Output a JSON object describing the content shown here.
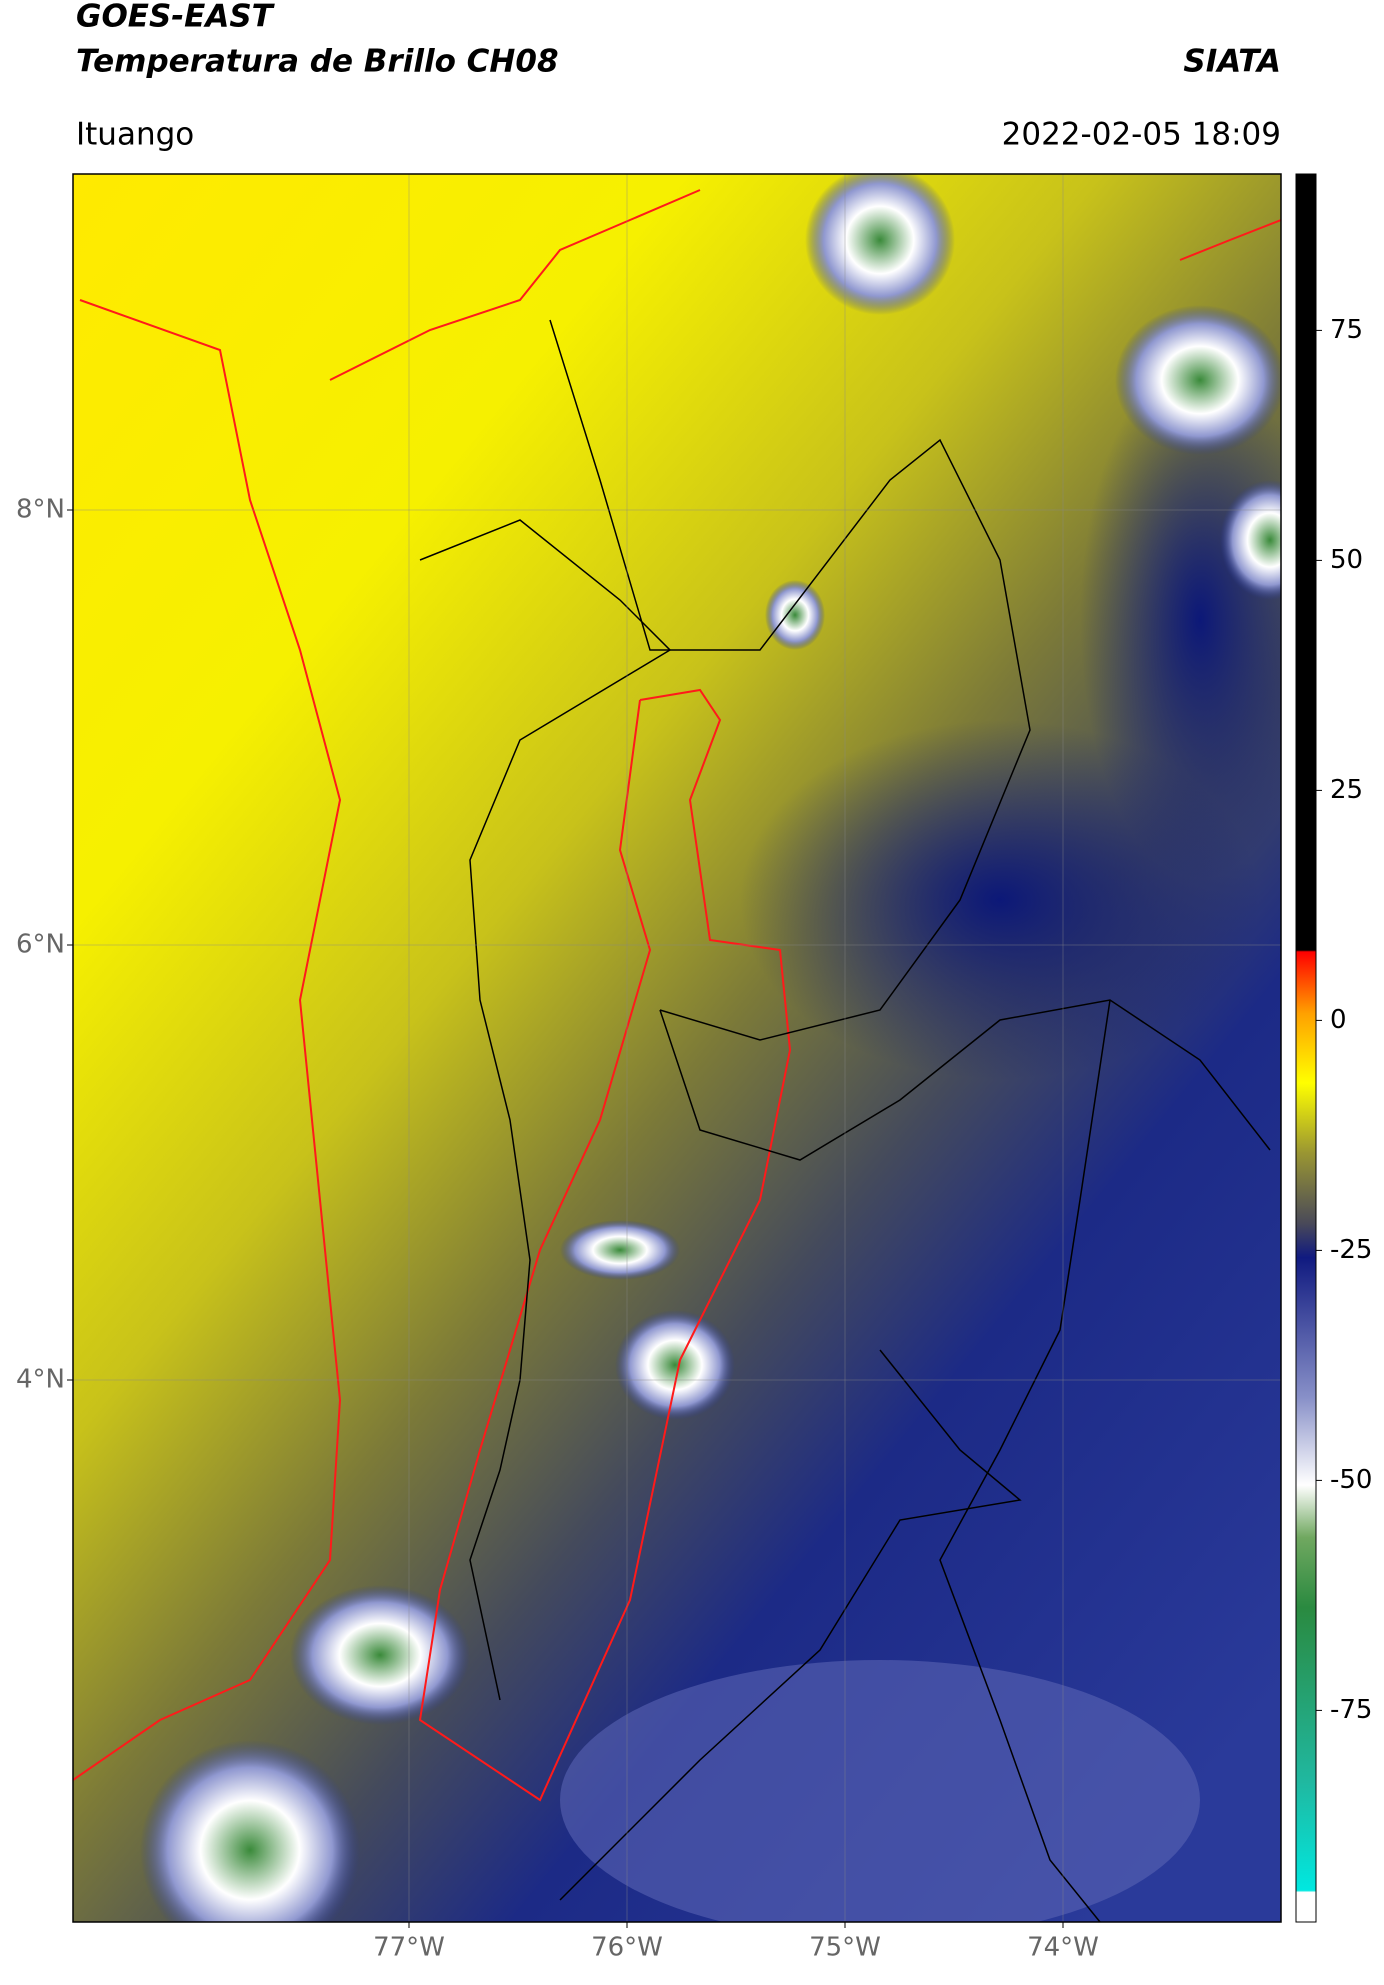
{
  "header": {
    "title": "GOES-EAST",
    "subtitle": "Temperatura de Brillo CH08",
    "source": "SIATA",
    "location": "Ituango",
    "datetime": "2022-02-05 18:09"
  },
  "map": {
    "lon_ticks": [
      {
        "value": -77,
        "label": "77°W"
      },
      {
        "value": -76,
        "label": "76°W"
      },
      {
        "value": -75,
        "label": "75°W"
      },
      {
        "value": -74,
        "label": "74°W"
      }
    ],
    "lat_ticks": [
      {
        "value": 8,
        "label": "8°N"
      },
      {
        "value": 6,
        "label": "6°N"
      },
      {
        "value": 4,
        "label": "4°N"
      }
    ],
    "grid": true
  },
  "colorbar": {
    "lim": [
      -98,
      92
    ],
    "ticks": [
      75,
      50,
      25,
      0,
      -25,
      -50,
      -75
    ]
  }
}
